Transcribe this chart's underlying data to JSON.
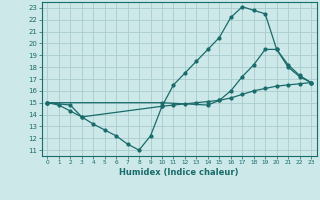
{
  "xlabel": "Humidex (Indice chaleur)",
  "bg_color": "#cce8e8",
  "grid_color": "#aacccc",
  "line_color": "#1a6b6b",
  "xlim": [
    -0.5,
    23.5
  ],
  "ylim": [
    10.5,
    23.5
  ],
  "xticks": [
    0,
    1,
    2,
    3,
    4,
    5,
    6,
    7,
    8,
    9,
    10,
    11,
    12,
    13,
    14,
    15,
    16,
    17,
    18,
    19,
    20,
    21,
    22,
    23
  ],
  "yticks": [
    11,
    12,
    13,
    14,
    15,
    16,
    17,
    18,
    19,
    20,
    21,
    22,
    23
  ],
  "line1_x": [
    0,
    1,
    2,
    3,
    10,
    11,
    12,
    13,
    14,
    15,
    16,
    17,
    18,
    19,
    20,
    21,
    22,
    23
  ],
  "line1_y": [
    15,
    14.8,
    14.3,
    13.8,
    14.7,
    16.5,
    17.5,
    18.5,
    19.5,
    20.5,
    22.2,
    23.1,
    22.8,
    22.5,
    19.5,
    18.0,
    17.2,
    16.7
  ],
  "line2_x": [
    0,
    2,
    3,
    4,
    5,
    6,
    7,
    8,
    9,
    10,
    11,
    12,
    13,
    14,
    15,
    16,
    17,
    18,
    19,
    20,
    21,
    22,
    23
  ],
  "line2_y": [
    15,
    14.8,
    13.8,
    13.2,
    12.7,
    12.2,
    11.5,
    11.0,
    12.2,
    14.7,
    14.8,
    14.9,
    15.0,
    15.1,
    15.2,
    15.4,
    15.7,
    16.0,
    16.2,
    16.4,
    16.5,
    16.6,
    16.7
  ],
  "line3_x": [
    0,
    10,
    14,
    15,
    16,
    17,
    18,
    19,
    20,
    21,
    22,
    23
  ],
  "line3_y": [
    15,
    15.0,
    14.8,
    15.2,
    16.0,
    17.2,
    18.2,
    19.5,
    19.5,
    18.2,
    17.3,
    16.7
  ]
}
